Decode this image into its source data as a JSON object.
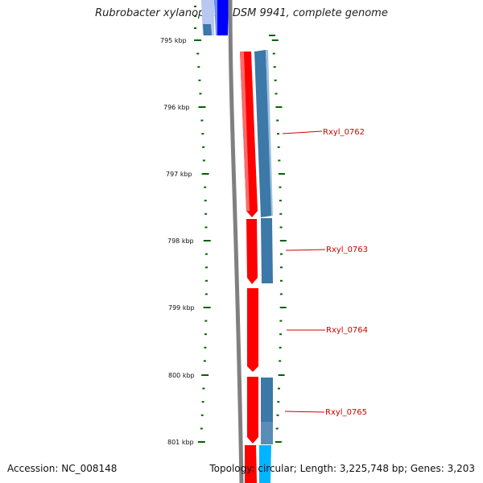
{
  "title": "Rubrobacter xylanophilus DSM 9941, complete genome",
  "footer": {
    "accession_label": "Accession:",
    "accession": "NC_008148",
    "topology_text": "Topology: circular; Length: 3,225,748 bp; Genes: 3,203"
  },
  "scale_labels": [
    "795 kbp",
    "796 kbp",
    "797 kbp",
    "798 kbp",
    "799 kbp",
    "800 kbp",
    "801 kbp"
  ],
  "genes": [
    {
      "label": "Rxyl_0762"
    },
    {
      "label": "Rxyl_0763"
    },
    {
      "label": "Rxyl_0764"
    },
    {
      "label": "Rxyl_0765"
    }
  ],
  "colors": {
    "cds_red": "#ff0000",
    "feature_blue": "#3c78a8",
    "feature_bright_blue": "#0000ff",
    "feature_cyan": "#00b4ff",
    "backbone": "#808080",
    "tick_green": "#006400",
    "label_red": "#d00000"
  }
}
